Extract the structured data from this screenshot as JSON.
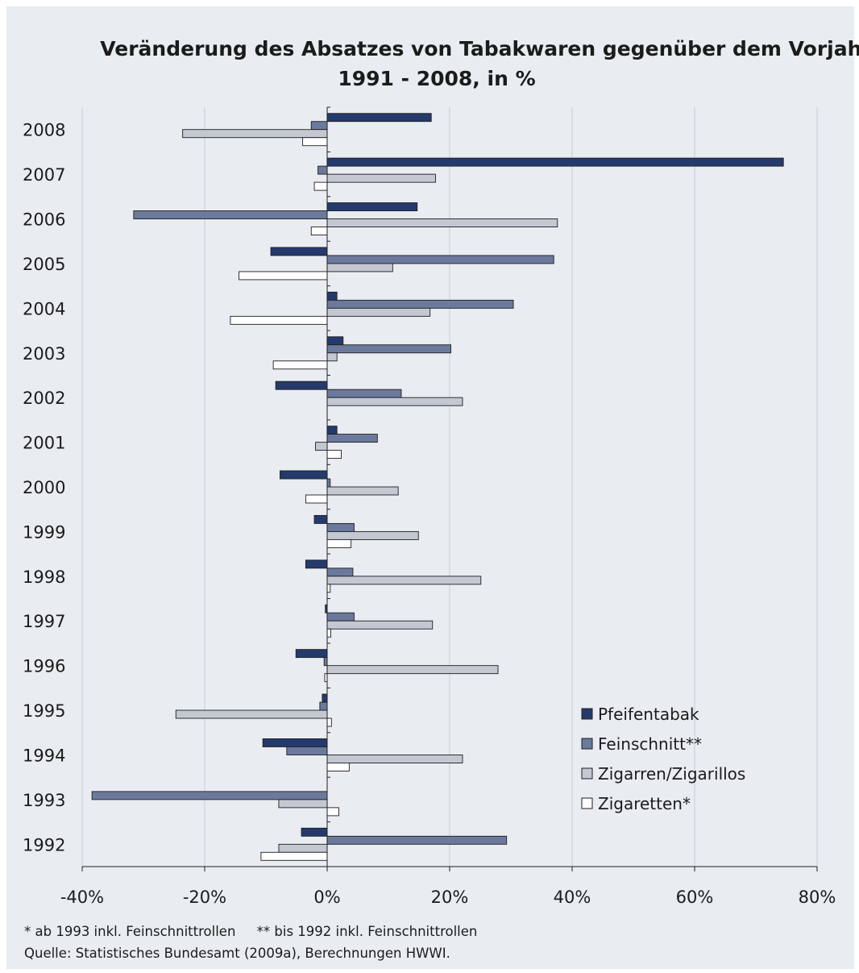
{
  "chart_data": {
    "type": "bar",
    "orientation": "horizontal",
    "title": "Veränderung des Absatzes von Tabakwaren gegenüber dem Vorjahr",
    "subtitle": "1991 - 2008, in %",
    "xlabel": "",
    "ylabel": "",
    "xlim": [
      -40,
      80
    ],
    "xticks": [
      "-40%",
      "-20%",
      "0%",
      "20%",
      "40%",
      "60%",
      "80%"
    ],
    "xtick_values": [
      -40,
      -20,
      0,
      20,
      40,
      60,
      80
    ],
    "grid": "vertical",
    "legend_position": "bottom-right",
    "categories": [
      "2008",
      "2007",
      "2006",
      "2005",
      "2004",
      "2003",
      "2002",
      "2001",
      "2000",
      "1999",
      "1998",
      "1997",
      "1996",
      "1995",
      "1994",
      "1993",
      "1992"
    ],
    "series": [
      {
        "name": "Pfeifentabak",
        "color": "#253a6c",
        "values": [
          17.0,
          74.5,
          14.7,
          -9.2,
          1.6,
          2.6,
          -8.4,
          1.6,
          -7.7,
          -2.1,
          -3.5,
          -0.3,
          -5.1,
          -0.8,
          -10.5,
          0.0,
          -4.2
        ]
      },
      {
        "name": "Feinschnitt**",
        "color": "#6b7a9c",
        "values": [
          -2.6,
          -1.5,
          -31.6,
          37.0,
          30.4,
          20.2,
          12.1,
          8.2,
          0.5,
          4.4,
          4.2,
          4.4,
          -0.5,
          -1.2,
          -6.6,
          -38.4,
          29.3
        ]
      },
      {
        "name": "Zigarren/Zigarillos",
        "color": "#c3c8d3",
        "values": [
          -23.6,
          17.7,
          37.6,
          10.7,
          16.8,
          1.6,
          22.1,
          -1.9,
          11.6,
          14.9,
          25.1,
          17.2,
          27.9,
          -24.7,
          22.1,
          -7.9,
          -7.9
        ]
      },
      {
        "name": "Zigaretten*",
        "color": "#ffffff",
        "values": [
          -4.0,
          -2.1,
          -2.6,
          -14.4,
          -15.8,
          -8.8,
          0.0,
          2.3,
          -3.5,
          3.9,
          0.5,
          0.6,
          -0.4,
          0.7,
          3.6,
          1.9,
          -10.8
        ]
      }
    ]
  },
  "footnote_line1": "* ab 1993 inkl. Feinschnittrollen     ** bis 1992 inkl. Feinschnittrollen",
  "footnote_line2": "Quelle: Statistisches Bundesamt (2009a), Berechnungen HWWI."
}
